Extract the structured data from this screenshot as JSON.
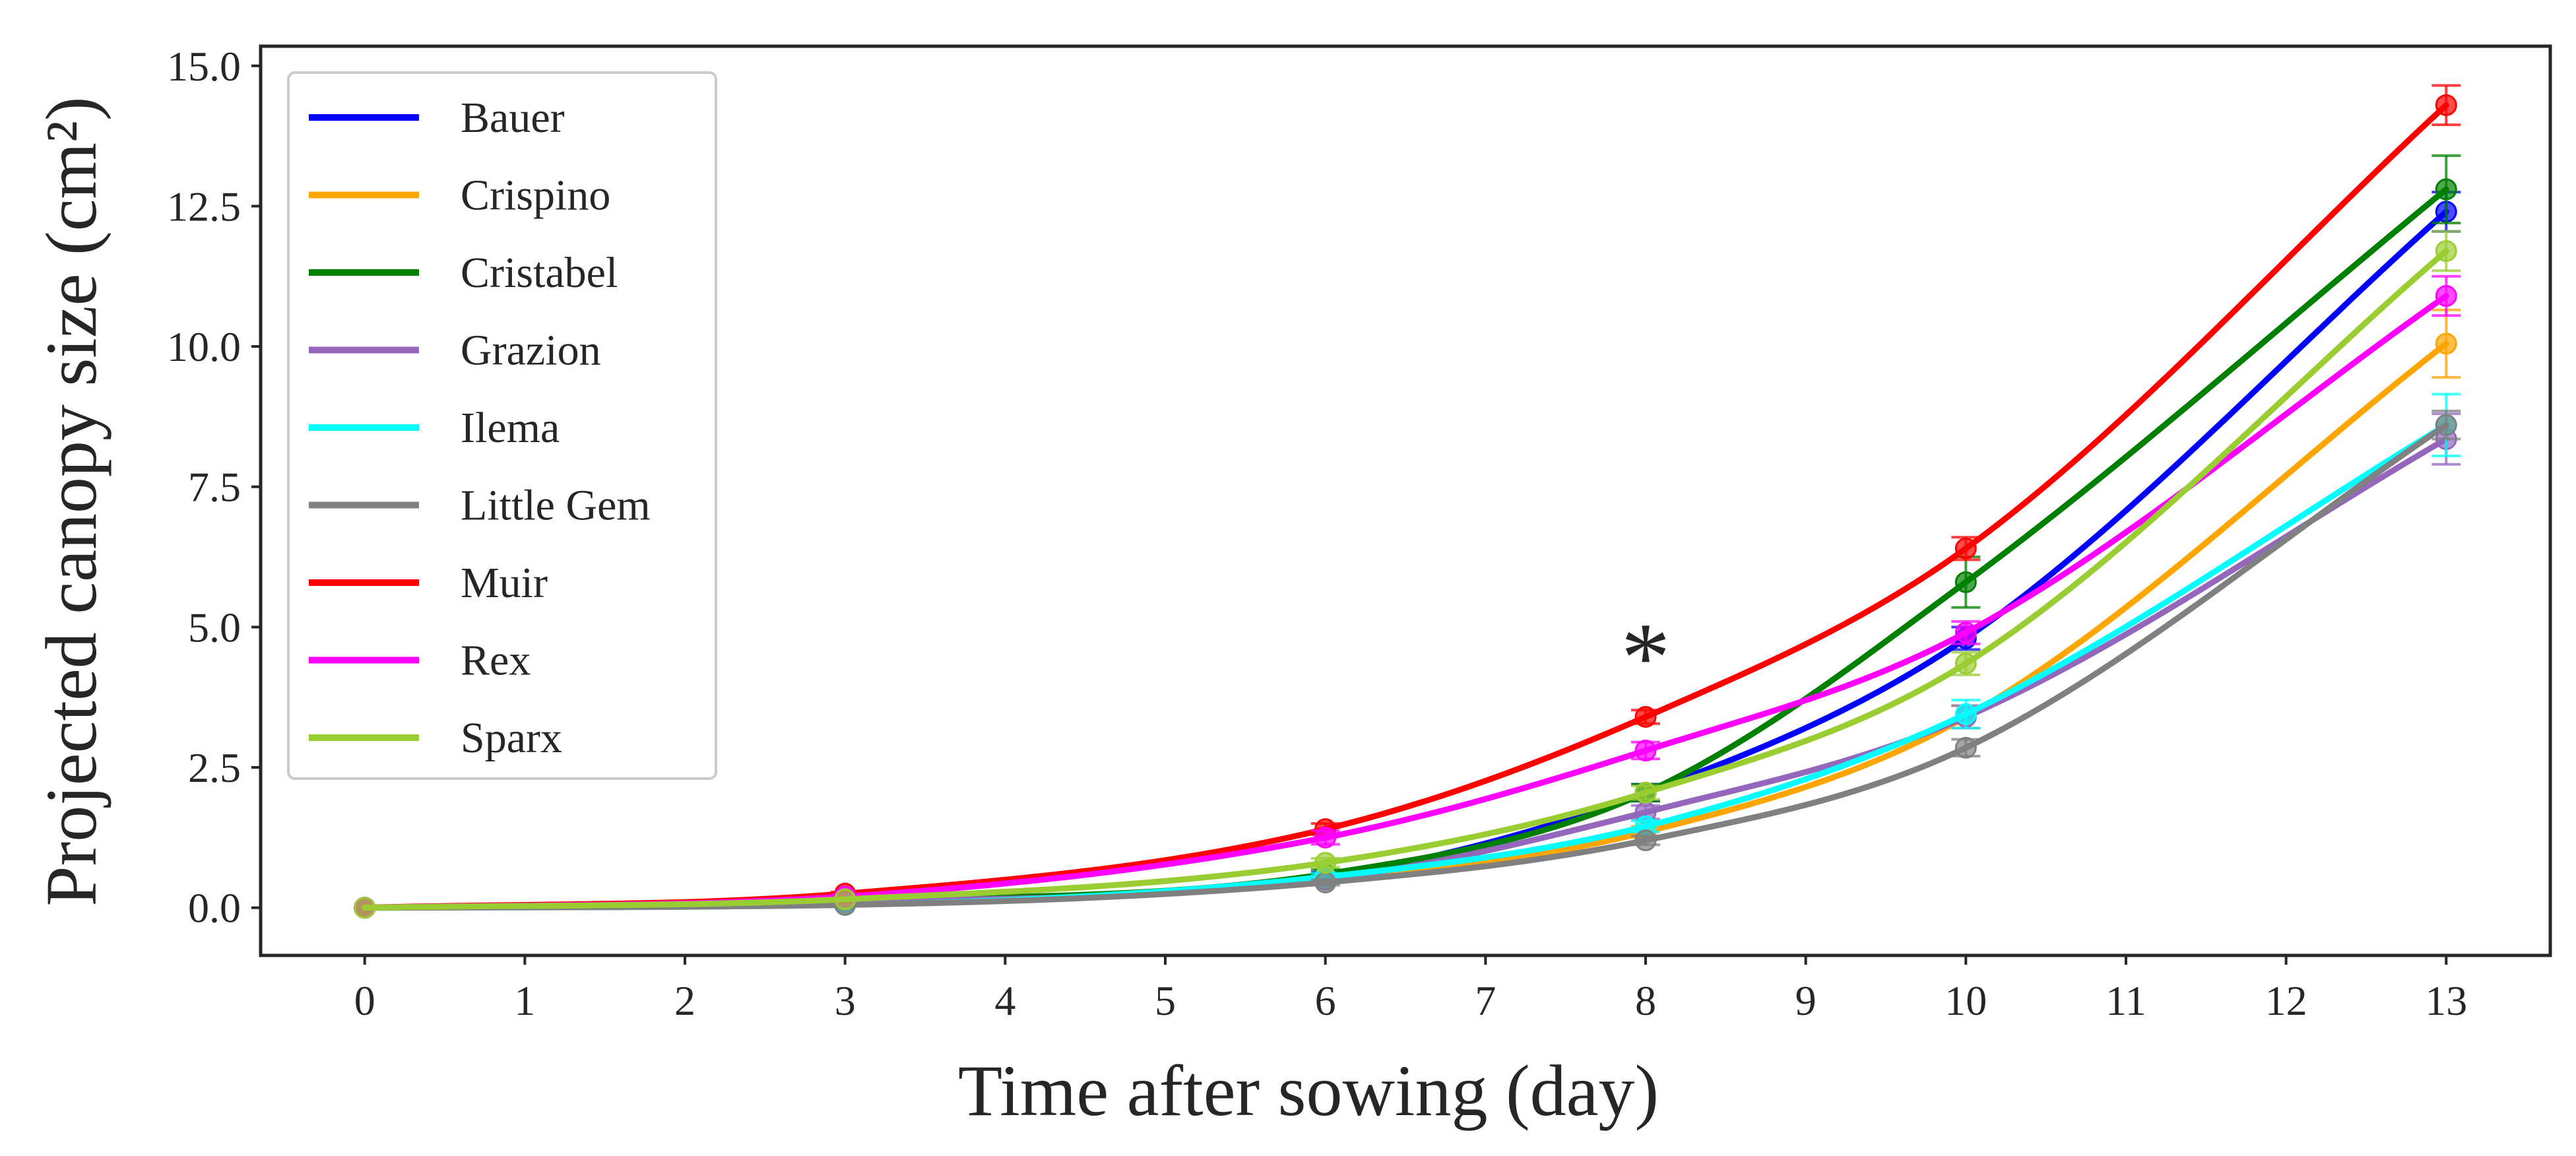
{
  "chart_data": {
    "type": "line",
    "title": "",
    "xlabel": "Time after sowing (day)",
    "ylabel": "Projected canopy size (cm²)",
    "x_ticks": [
      0,
      1,
      2,
      3,
      4,
      5,
      6,
      7,
      8,
      9,
      10,
      11,
      12,
      13
    ],
    "y_ticks": [
      0.0,
      2.5,
      5.0,
      7.5,
      10.0,
      12.5,
      15.0
    ],
    "y_tick_labels": [
      "0.0",
      "2.5",
      "5.0",
      "7.5",
      "10.0",
      "12.5",
      "15.0"
    ],
    "xlim": [
      -0.65,
      13.65
    ],
    "ylim": [
      -0.85,
      15.35
    ],
    "grid": false,
    "legend_position": "upper-left",
    "x": [
      0,
      3,
      6,
      8,
      10,
      13
    ],
    "series": [
      {
        "name": "Bauer",
        "color": "#0000ff",
        "values": [
          0.0,
          0.1,
          0.55,
          2.05,
          4.8,
          12.4
        ],
        "errors": [
          0.0,
          0.02,
          0.08,
          0.15,
          0.2,
          0.35
        ]
      },
      {
        "name": "Crispino",
        "color": "#ffa500",
        "values": [
          0.0,
          0.08,
          0.5,
          1.35,
          3.4,
          10.05
        ],
        "errors": [
          0.0,
          0.02,
          0.06,
          0.1,
          0.2,
          0.6
        ]
      },
      {
        "name": "Cristabel",
        "color": "#008000",
        "values": [
          0.0,
          0.12,
          0.6,
          2.05,
          5.8,
          12.8
        ],
        "errors": [
          0.0,
          0.02,
          0.08,
          0.15,
          0.45,
          0.6
        ]
      },
      {
        "name": "Grazion",
        "color": "#9467bd",
        "values": [
          0.0,
          0.1,
          0.5,
          1.7,
          3.4,
          8.35
        ],
        "errors": [
          0.0,
          0.02,
          0.06,
          0.12,
          0.2,
          0.45
        ]
      },
      {
        "name": "Ilema",
        "color": "#00ffff",
        "values": [
          0.0,
          0.05,
          0.55,
          1.45,
          3.45,
          8.6
        ],
        "errors": [
          0.0,
          0.02,
          0.06,
          0.1,
          0.25,
          0.55
        ]
      },
      {
        "name": "Little Gem",
        "color": "#808080",
        "values": [
          0.0,
          0.05,
          0.45,
          1.2,
          2.85,
          8.6
        ],
        "errors": [
          0.0,
          0.02,
          0.05,
          0.08,
          0.15,
          0.25
        ]
      },
      {
        "name": "Muir",
        "color": "#ff0000",
        "values": [
          0.0,
          0.25,
          1.4,
          3.4,
          6.4,
          14.3
        ],
        "errors": [
          0.0,
          0.03,
          0.1,
          0.12,
          0.2,
          0.35
        ]
      },
      {
        "name": "Rex",
        "color": "#ff00ff",
        "values": [
          0.0,
          0.2,
          1.25,
          2.8,
          4.9,
          10.9
        ],
        "errors": [
          0.0,
          0.03,
          0.12,
          0.15,
          0.2,
          0.35
        ]
      },
      {
        "name": "Sparx",
        "color": "#9acd32",
        "values": [
          0.0,
          0.15,
          0.8,
          2.05,
          4.35,
          11.7
        ],
        "errors": [
          0.0,
          0.02,
          0.08,
          0.12,
          0.2,
          0.35
        ]
      }
    ],
    "annotations": [
      {
        "text": "*",
        "x": 8,
        "y": 4.4
      }
    ]
  }
}
